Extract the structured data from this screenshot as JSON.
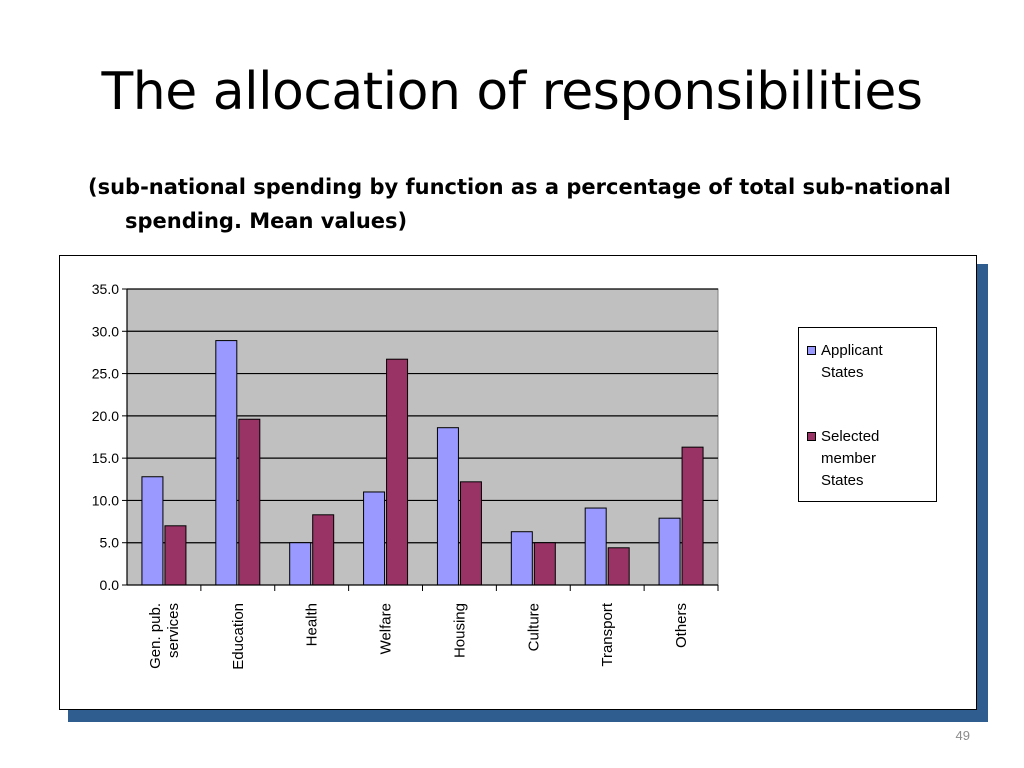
{
  "slide": {
    "title": "The allocation of responsibilities",
    "subtitle": "(sub-national spending by function as a percentage of total sub-national spending. Mean values)",
    "page_number": "49"
  },
  "colors": {
    "applicant": "#9999ff",
    "selected": "#993366",
    "plot_background": "#c0c0c0",
    "frame_shadow": "#2f5d8f"
  },
  "chart_data": {
    "type": "bar",
    "categories": [
      [
        "Gen. pub.",
        "services"
      ],
      [
        "Education"
      ],
      [
        "Health"
      ],
      [
        "Welfare"
      ],
      [
        "Housing"
      ],
      [
        "Culture"
      ],
      [
        "Transport"
      ],
      [
        "Others"
      ]
    ],
    "series": [
      {
        "name": "Applicant States",
        "name_lines": [
          "Applicant",
          "States"
        ],
        "values": [
          12.8,
          28.9,
          5.0,
          11.0,
          18.6,
          6.3,
          9.1,
          7.9
        ]
      },
      {
        "name": "Selected member States",
        "name_lines": [
          "Selected",
          "member",
          "States"
        ],
        "values": [
          7.0,
          19.6,
          8.3,
          26.7,
          12.2,
          5.0,
          4.4,
          16.3
        ]
      }
    ],
    "ylim": [
      0,
      35
    ],
    "yticks": [
      "0.0",
      "5.0",
      "10.0",
      "15.0",
      "20.0",
      "25.0",
      "30.0",
      "35.0"
    ],
    "grid": true,
    "legend": "right"
  }
}
